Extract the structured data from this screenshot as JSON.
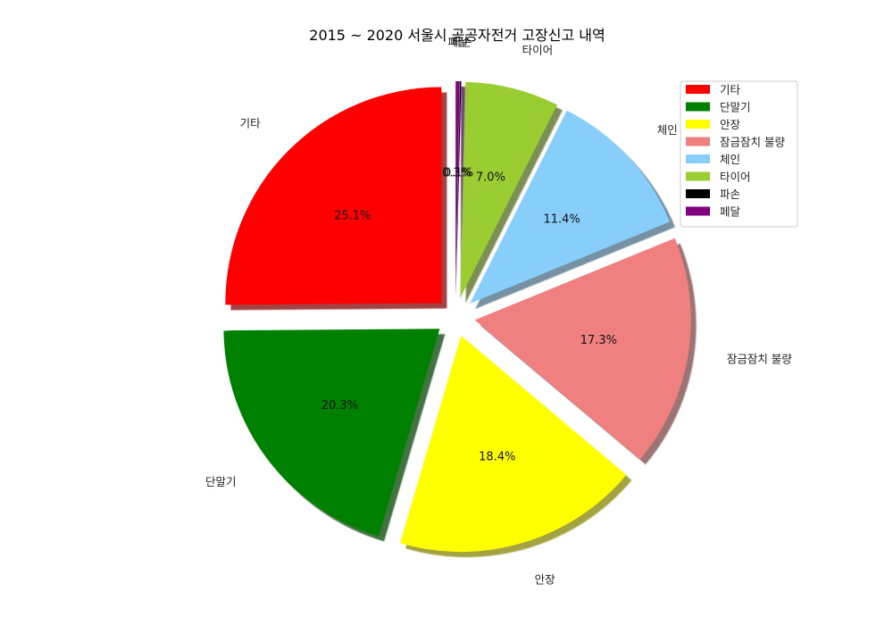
{
  "chart_data": {
    "type": "pie",
    "title": "2015 ~ 2020 서울시 공공자전거 고장신고 내역",
    "categories": [
      "기타",
      "단말기",
      "안장",
      "잠금잠치 불량",
      "체인",
      "타이어",
      "파손",
      "페달"
    ],
    "values": [
      25.1,
      20.3,
      18.4,
      17.3,
      11.4,
      7.0,
      0.1,
      0.3
    ],
    "value_labels": [
      "25.1%",
      "20.3%",
      "18.4%",
      "17.3%",
      "11.4%",
      "7.0%",
      "0.1%",
      "0.3%"
    ],
    "colors": [
      "#ff0000",
      "#008000",
      "#ffff00",
      "#f08080",
      "#87cefa",
      "#9acd32",
      "#000000",
      "#800080"
    ],
    "start_angle_deg": 90,
    "direction": "counterclockwise",
    "exploded": true,
    "shadow": true,
    "legend": {
      "position": "top-right",
      "entries": [
        "기타",
        "단말기",
        "안장",
        "잠금잠치 불량",
        "체인",
        "타이어",
        "파손",
        "페달"
      ]
    }
  }
}
